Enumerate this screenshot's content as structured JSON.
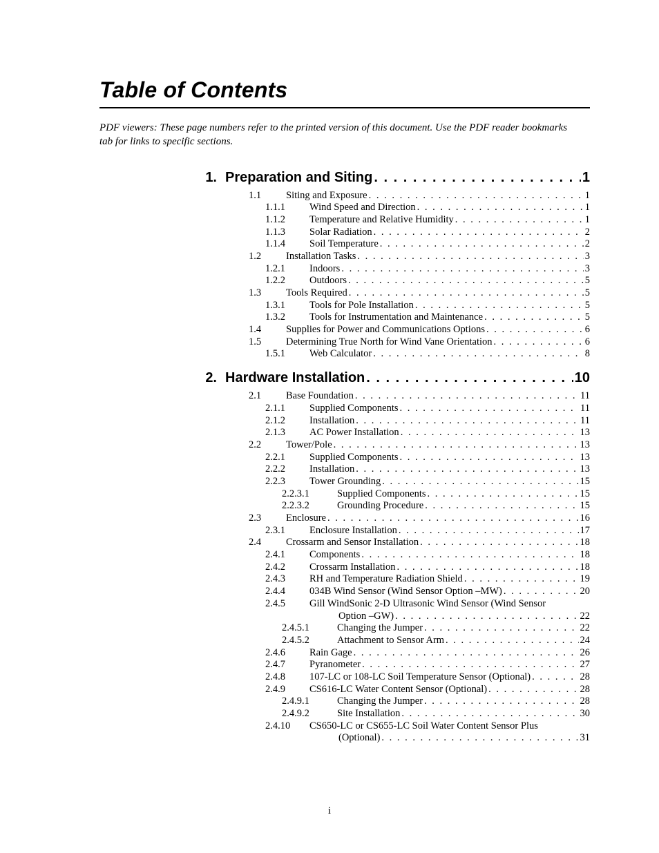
{
  "title": "Table of Contents",
  "note": "PDF viewers:  These page numbers refer to the printed version of this document.  Use the PDF reader bookmarks tab for links to specific sections.",
  "page_label": "i",
  "colors": {
    "text": "#000000",
    "background": "#ffffff",
    "rule": "#000000"
  },
  "typography": {
    "title_font": "Arial",
    "title_style": "bold italic",
    "title_size_pt": 24,
    "chapter_font": "Arial",
    "chapter_style": "bold",
    "chapter_size_pt": 15,
    "body_font": "Times New Roman",
    "body_size_pt": 11,
    "note_style": "italic"
  },
  "chapters": [
    {
      "num": "1.",
      "title": "Preparation and Siting",
      "page": "1",
      "entries": [
        {
          "level": 2,
          "num": "1.1",
          "title": "Siting and Exposure",
          "page": "1"
        },
        {
          "level": 3,
          "num": "1.1.1",
          "title": "Wind Speed and Direction",
          "page": "1"
        },
        {
          "level": 3,
          "num": "1.1.2",
          "title": "Temperature and Relative Humidity",
          "page": "1"
        },
        {
          "level": 3,
          "num": "1.1.3",
          "title": "Solar Radiation",
          "page": "2"
        },
        {
          "level": 3,
          "num": "1.1.4",
          "title": "Soil Temperature",
          "page": "2"
        },
        {
          "level": 2,
          "num": "1.2",
          "title": "Installation Tasks",
          "page": "3"
        },
        {
          "level": 3,
          "num": "1.2.1",
          "title": "Indoors",
          "page": "3"
        },
        {
          "level": 3,
          "num": "1.2.2",
          "title": "Outdoors",
          "page": "5"
        },
        {
          "level": 2,
          "num": "1.3",
          "title": "Tools Required",
          "page": "5"
        },
        {
          "level": 3,
          "num": "1.3.1",
          "title": "Tools for Pole Installation",
          "page": "5"
        },
        {
          "level": 3,
          "num": "1.3.2",
          "title": "Tools for Instrumentation and Maintenance",
          "page": "5"
        },
        {
          "level": 2,
          "num": "1.4",
          "title": "Supplies for Power and Communications Options",
          "page": "6"
        },
        {
          "level": 2,
          "num": "1.5",
          "title": "Determining True North for Wind Vane Orientation",
          "page": "6"
        },
        {
          "level": 3,
          "num": "1.5.1",
          "title": "Web Calculator",
          "page": "8"
        }
      ]
    },
    {
      "num": "2.",
      "title": "Hardware Installation",
      "page": "10",
      "entries": [
        {
          "level": 2,
          "num": "2.1",
          "title": "Base Foundation",
          "page": "11"
        },
        {
          "level": 3,
          "num": "2.1.1",
          "title": "Supplied Components",
          "page": "11"
        },
        {
          "level": 3,
          "num": "2.1.2",
          "title": "Installation",
          "page": "11"
        },
        {
          "level": 3,
          "num": "2.1.3",
          "title": "AC Power Installation",
          "page": "13"
        },
        {
          "level": 2,
          "num": "2.2",
          "title": "Tower/Pole",
          "page": "13"
        },
        {
          "level": 3,
          "num": "2.2.1",
          "title": "Supplied Components",
          "page": "13"
        },
        {
          "level": 3,
          "num": "2.2.2",
          "title": "Installation",
          "page": "13"
        },
        {
          "level": 3,
          "num": "2.2.3",
          "title": "Tower Grounding",
          "page": "15"
        },
        {
          "level": 4,
          "num": "2.2.3.1",
          "title": "Supplied Components",
          "page": "15"
        },
        {
          "level": 4,
          "num": "2.2.3.2",
          "title": "Grounding Procedure",
          "page": "15"
        },
        {
          "level": 2,
          "num": "2.3",
          "title": "Enclosure",
          "page": "16"
        },
        {
          "level": 3,
          "num": "2.3.1",
          "title": "Enclosure Installation",
          "page": "17"
        },
        {
          "level": 2,
          "num": "2.4",
          "title": "Crossarm and Sensor Installation",
          "page": "18"
        },
        {
          "level": 3,
          "num": "2.4.1",
          "title": "Components",
          "page": "18"
        },
        {
          "level": 3,
          "num": "2.4.2",
          "title": "Crossarm Installation",
          "page": "18"
        },
        {
          "level": 3,
          "num": "2.4.3",
          "title": "RH and Temperature Radiation Shield",
          "page": "19"
        },
        {
          "level": 3,
          "num": "2.4.4",
          "title": "034B Wind Sensor (Wind Sensor Option –MW)",
          "page": "20"
        },
        {
          "level": 3,
          "num": "2.4.5",
          "title": "Gill WindSonic 2-D Ultrasonic Wind Sensor (Wind Sensor",
          "cont": "Option –GW)",
          "page": "22"
        },
        {
          "level": 4,
          "num": "2.4.5.1",
          "title": "Changing the Jumper",
          "page": "22"
        },
        {
          "level": 4,
          "num": "2.4.5.2",
          "title": "Attachment to Sensor Arm",
          "page": "24"
        },
        {
          "level": 3,
          "num": "2.4.6",
          "title": "Rain Gage",
          "page": "26"
        },
        {
          "level": 3,
          "num": "2.4.7",
          "title": "Pyranometer",
          "page": "27"
        },
        {
          "level": 3,
          "num": "2.4.8",
          "title": "107-LC or 108-LC Soil Temperature Sensor (Optional)",
          "page": "28"
        },
        {
          "level": 3,
          "num": "2.4.9",
          "title": "CS616-LC Water Content Sensor (Optional)",
          "page": "28"
        },
        {
          "level": 4,
          "num": "2.4.9.1",
          "title": "Changing the Jumper",
          "page": "28"
        },
        {
          "level": 4,
          "num": "2.4.9.2",
          "title": "Site Installation",
          "page": "30"
        },
        {
          "level": 3,
          "num": "2.4.10",
          "title": "CS650-LC or CS655-LC Soil Water Content Sensor Plus",
          "cont": "(Optional)",
          "page": "31"
        }
      ]
    }
  ]
}
